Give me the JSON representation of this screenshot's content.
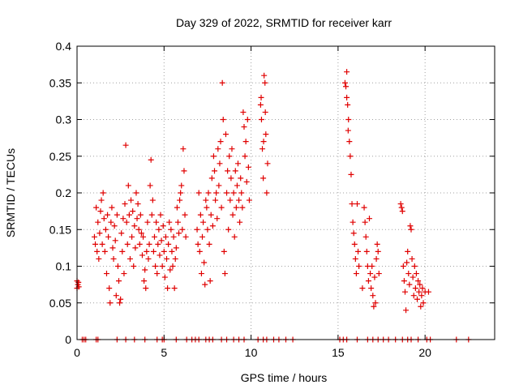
{
  "chart_data": {
    "type": "scatter",
    "title": "Day 329 of 2022, SRMTID for receiver karr",
    "xlabel": "GPS time / hours",
    "ylabel": "SRMTID / TECUs",
    "xlim": [
      0,
      24
    ],
    "ylim": [
      0,
      0.4
    ],
    "xticks": [
      0,
      5,
      10,
      15,
      20
    ],
    "yticks": [
      0,
      0.05,
      0.1,
      0.15,
      0.2,
      0.25,
      0.3,
      0.35,
      0.4
    ],
    "xtick_labels": [
      "0",
      "5",
      "10",
      "15",
      "20"
    ],
    "ytick_labels": [
      "0",
      "0.05",
      "0.1",
      "0.15",
      "0.2",
      "0.25",
      "0.3",
      "0.35",
      "0.4"
    ],
    "grid": true,
    "marker": "+",
    "series_color": "#e00000",
    "series": [
      {
        "name": "SRMTID",
        "points": [
          [
            0.0,
            0.08
          ],
          [
            0.05,
            0.075
          ],
          [
            0.1,
            0.072
          ],
          [
            0.0,
            0.07
          ],
          [
            0.08,
            0.078
          ],
          [
            0.3,
            0.0
          ],
          [
            0.4,
            0.0
          ],
          [
            0.5,
            0.0
          ],
          [
            1.1,
            0.0
          ],
          [
            1.2,
            0.0
          ],
          [
            2.3,
            0.0
          ],
          [
            2.8,
            0.0
          ],
          [
            3.3,
            0.0
          ],
          [
            3.9,
            0.0
          ],
          [
            4.6,
            0.0
          ],
          [
            4.9,
            0.0
          ],
          [
            5.0,
            0.0
          ],
          [
            5.7,
            0.0
          ],
          [
            6.3,
            0.0
          ],
          [
            6.6,
            0.0
          ],
          [
            6.8,
            0.0
          ],
          [
            7.0,
            0.0
          ],
          [
            7.4,
            0.0
          ],
          [
            7.6,
            0.0
          ],
          [
            7.8,
            0.0
          ],
          [
            8.3,
            0.0
          ],
          [
            8.6,
            0.0
          ],
          [
            9.0,
            0.0
          ],
          [
            9.3,
            0.0
          ],
          [
            9.6,
            0.0
          ],
          [
            10.4,
            0.0
          ],
          [
            10.7,
            0.0
          ],
          [
            10.9,
            0.0
          ],
          [
            11.3,
            0.0
          ],
          [
            11.6,
            0.0
          ],
          [
            12.0,
            0.0
          ],
          [
            12.4,
            0.0
          ],
          [
            15.1,
            0.0
          ],
          [
            15.3,
            0.0
          ],
          [
            15.5,
            0.0
          ],
          [
            16.1,
            0.0
          ],
          [
            16.7,
            0.0
          ],
          [
            17.0,
            0.0
          ],
          [
            17.3,
            0.0
          ],
          [
            17.6,
            0.0
          ],
          [
            17.9,
            0.0
          ],
          [
            18.3,
            0.0
          ],
          [
            18.7,
            0.0
          ],
          [
            19.0,
            0.0
          ],
          [
            19.2,
            0.0
          ],
          [
            19.6,
            0.0
          ],
          [
            20.1,
            0.0
          ],
          [
            20.3,
            0.0
          ],
          [
            21.8,
            0.0
          ],
          [
            22.5,
            0.0
          ],
          [
            1.0,
            0.14
          ],
          [
            1.05,
            0.13
          ],
          [
            1.1,
            0.18
          ],
          [
            1.15,
            0.12
          ],
          [
            1.2,
            0.16
          ],
          [
            1.25,
            0.11
          ],
          [
            1.3,
            0.145
          ],
          [
            1.35,
            0.175
          ],
          [
            1.4,
            0.19
          ],
          [
            1.45,
            0.13
          ],
          [
            1.5,
            0.2
          ],
          [
            1.55,
            0.165
          ],
          [
            1.6,
            0.12
          ],
          [
            1.65,
            0.15
          ],
          [
            1.7,
            0.09
          ],
          [
            1.75,
            0.17
          ],
          [
            1.8,
            0.14
          ],
          [
            1.85,
            0.07
          ],
          [
            1.9,
            0.05
          ],
          [
            1.95,
            0.16
          ],
          [
            2.0,
            0.18
          ],
          [
            2.05,
            0.125
          ],
          [
            2.1,
            0.11
          ],
          [
            2.15,
            0.155
          ],
          [
            2.2,
            0.135
          ],
          [
            2.25,
            0.06
          ],
          [
            2.3,
            0.17
          ],
          [
            2.35,
            0.1
          ],
          [
            2.4,
            0.08
          ],
          [
            2.45,
            0.05
          ],
          [
            2.5,
            0.055
          ],
          [
            2.55,
            0.145
          ],
          [
            2.6,
            0.12
          ],
          [
            2.65,
            0.165
          ],
          [
            2.7,
            0.09
          ],
          [
            2.75,
            0.185
          ],
          [
            2.8,
            0.265
          ],
          [
            2.85,
            0.16
          ],
          [
            2.9,
            0.13
          ],
          [
            2.95,
            0.21
          ],
          [
            3.0,
            0.17
          ],
          [
            3.05,
            0.11
          ],
          [
            3.1,
            0.19
          ],
          [
            3.15,
            0.14
          ],
          [
            3.2,
            0.175
          ],
          [
            3.25,
            0.1
          ],
          [
            3.3,
            0.155
          ],
          [
            3.35,
            0.125
          ],
          [
            3.4,
            0.2
          ],
          [
            3.45,
            0.165
          ],
          [
            3.5,
            0.185
          ],
          [
            3.55,
            0.15
          ],
          [
            3.6,
            0.13
          ],
          [
            3.65,
            0.17
          ],
          [
            3.7,
            0.145
          ],
          [
            3.75,
            0.115
          ],
          [
            3.8,
            0.14
          ],
          [
            3.85,
            0.08
          ],
          [
            3.9,
            0.095
          ],
          [
            3.95,
            0.07
          ],
          [
            4.0,
            0.12
          ],
          [
            4.05,
            0.16
          ],
          [
            4.1,
            0.11
          ],
          [
            4.15,
            0.13
          ],
          [
            4.2,
            0.21
          ],
          [
            4.25,
            0.245
          ],
          [
            4.3,
            0.17
          ],
          [
            4.35,
            0.19
          ],
          [
            4.4,
            0.12
          ],
          [
            4.45,
            0.14
          ],
          [
            4.5,
            0.1
          ],
          [
            4.55,
            0.16
          ],
          [
            4.6,
            0.09
          ],
          [
            4.65,
            0.13
          ],
          [
            4.7,
            0.15
          ],
          [
            4.75,
            0.115
          ],
          [
            4.8,
            0.17
          ],
          [
            4.85,
            0.135
          ],
          [
            4.9,
            0.1
          ],
          [
            4.95,
            0.155
          ],
          [
            5.0,
            0.12
          ],
          [
            5.05,
            0.085
          ],
          [
            5.1,
            0.14
          ],
          [
            5.15,
            0.11
          ],
          [
            5.2,
            0.07
          ],
          [
            5.25,
            0.13
          ],
          [
            5.3,
            0.16
          ],
          [
            5.35,
            0.095
          ],
          [
            5.4,
            0.15
          ],
          [
            5.45,
            0.12
          ],
          [
            5.5,
            0.1
          ],
          [
            5.55,
            0.14
          ],
          [
            5.6,
            0.07
          ],
          [
            5.65,
            0.11
          ],
          [
            5.7,
            0.125
          ],
          [
            5.75,
            0.18
          ],
          [
            5.8,
            0.16
          ],
          [
            5.85,
            0.145
          ],
          [
            5.9,
            0.19
          ],
          [
            5.95,
            0.2
          ],
          [
            6.0,
            0.21
          ],
          [
            6.05,
            0.15
          ],
          [
            6.1,
            0.26
          ],
          [
            6.15,
            0.23
          ],
          [
            6.2,
            0.17
          ],
          [
            6.25,
            0.14
          ],
          [
            6.9,
            0.15
          ],
          [
            6.95,
            0.13
          ],
          [
            7.0,
            0.2
          ],
          [
            7.05,
            0.12
          ],
          [
            7.1,
            0.17
          ],
          [
            7.15,
            0.09
          ],
          [
            7.2,
            0.14
          ],
          [
            7.25,
            0.16
          ],
          [
            7.3,
            0.105
          ],
          [
            7.35,
            0.075
          ],
          [
            7.4,
            0.19
          ],
          [
            7.45,
            0.18
          ],
          [
            7.5,
            0.15
          ],
          [
            7.55,
            0.2
          ],
          [
            7.6,
            0.13
          ],
          [
            7.65,
            0.08
          ],
          [
            7.7,
            0.17
          ],
          [
            7.75,
            0.22
          ],
          [
            7.8,
            0.155
          ],
          [
            7.85,
            0.25
          ],
          [
            7.9,
            0.23
          ],
          [
            7.95,
            0.19
          ],
          [
            8.0,
            0.2
          ],
          [
            8.05,
            0.165
          ],
          [
            8.1,
            0.26
          ],
          [
            8.15,
            0.21
          ],
          [
            8.2,
            0.24
          ],
          [
            8.25,
            0.27
          ],
          [
            8.3,
            0.18
          ],
          [
            8.35,
            0.35
          ],
          [
            8.4,
            0.3
          ],
          [
            8.45,
            0.12
          ],
          [
            8.5,
            0.09
          ],
          [
            8.55,
            0.28
          ],
          [
            8.6,
            0.2
          ],
          [
            8.65,
            0.23
          ],
          [
            8.7,
            0.15
          ],
          [
            8.75,
            0.25
          ],
          [
            8.8,
            0.19
          ],
          [
            8.85,
            0.22
          ],
          [
            8.9,
            0.26
          ],
          [
            8.95,
            0.17
          ],
          [
            9.0,
            0.2
          ],
          [
            9.05,
            0.14
          ],
          [
            9.1,
            0.23
          ],
          [
            9.15,
            0.18
          ],
          [
            9.2,
            0.21
          ],
          [
            9.25,
            0.24
          ],
          [
            9.3,
            0.19
          ],
          [
            9.35,
            0.16
          ],
          [
            9.4,
            0.22
          ],
          [
            9.45,
            0.2
          ],
          [
            9.5,
            0.18
          ],
          [
            9.55,
            0.31
          ],
          [
            9.6,
            0.29
          ],
          [
            9.65,
            0.25
          ],
          [
            9.7,
            0.27
          ],
          [
            9.75,
            0.215
          ],
          [
            9.8,
            0.3
          ],
          [
            9.85,
            0.235
          ],
          [
            9.9,
            0.19
          ],
          [
            10.55,
            0.32
          ],
          [
            10.6,
            0.3
          ],
          [
            10.65,
            0.26
          ],
          [
            10.7,
            0.22
          ],
          [
            10.75,
            0.36
          ],
          [
            10.8,
            0.35
          ],
          [
            10.85,
            0.28
          ],
          [
            10.9,
            0.2
          ],
          [
            10.95,
            0.24
          ],
          [
            10.58,
            0.33
          ],
          [
            10.72,
            0.27
          ],
          [
            10.82,
            0.31
          ],
          [
            15.4,
            0.35
          ],
          [
            15.45,
            0.345
          ],
          [
            15.5,
            0.365
          ],
          [
            15.55,
            0.32
          ],
          [
            15.6,
            0.3
          ],
          [
            15.65,
            0.27
          ],
          [
            15.7,
            0.25
          ],
          [
            15.75,
            0.225
          ],
          [
            15.5,
            0.33
          ],
          [
            15.58,
            0.285
          ],
          [
            15.8,
            0.185
          ],
          [
            15.85,
            0.16
          ],
          [
            15.9,
            0.145
          ],
          [
            15.95,
            0.13
          ],
          [
            16.0,
            0.11
          ],
          [
            16.05,
            0.09
          ],
          [
            16.1,
            0.185
          ],
          [
            16.15,
            0.12
          ],
          [
            16.2,
            0.1
          ],
          [
            16.4,
            0.07
          ],
          [
            16.5,
            0.18
          ],
          [
            16.55,
            0.16
          ],
          [
            16.6,
            0.14
          ],
          [
            16.65,
            0.12
          ],
          [
            16.7,
            0.1
          ],
          [
            16.75,
            0.08
          ],
          [
            16.8,
            0.165
          ],
          [
            16.85,
            0.09
          ],
          [
            16.9,
            0.07
          ],
          [
            16.95,
            0.1
          ],
          [
            17.0,
            0.06
          ],
          [
            17.05,
            0.045
          ],
          [
            17.1,
            0.085
          ],
          [
            17.15,
            0.05
          ],
          [
            17.2,
            0.11
          ],
          [
            17.25,
            0.13
          ],
          [
            17.3,
            0.12
          ],
          [
            17.35,
            0.09
          ],
          [
            18.6,
            0.185
          ],
          [
            18.65,
            0.18
          ],
          [
            18.7,
            0.175
          ],
          [
            18.75,
            0.1
          ],
          [
            18.8,
            0.08
          ],
          [
            18.85,
            0.065
          ],
          [
            18.9,
            0.04
          ],
          [
            18.95,
            0.105
          ],
          [
            19.0,
            0.12
          ],
          [
            19.05,
            0.09
          ],
          [
            19.1,
            0.075
          ],
          [
            19.15,
            0.155
          ],
          [
            19.2,
            0.15
          ],
          [
            19.25,
            0.11
          ],
          [
            19.3,
            0.085
          ],
          [
            19.35,
            0.06
          ],
          [
            19.4,
            0.1
          ],
          [
            19.45,
            0.07
          ],
          [
            19.5,
            0.09
          ],
          [
            19.55,
            0.055
          ],
          [
            19.6,
            0.08
          ],
          [
            19.65,
            0.065
          ],
          [
            19.7,
            0.075
          ],
          [
            19.75,
            0.045
          ],
          [
            19.8,
            0.06
          ],
          [
            19.85,
            0.07
          ],
          [
            19.9,
            0.05
          ],
          [
            20.0,
            0.065
          ],
          [
            20.2,
            0.065
          ]
        ]
      }
    ]
  }
}
